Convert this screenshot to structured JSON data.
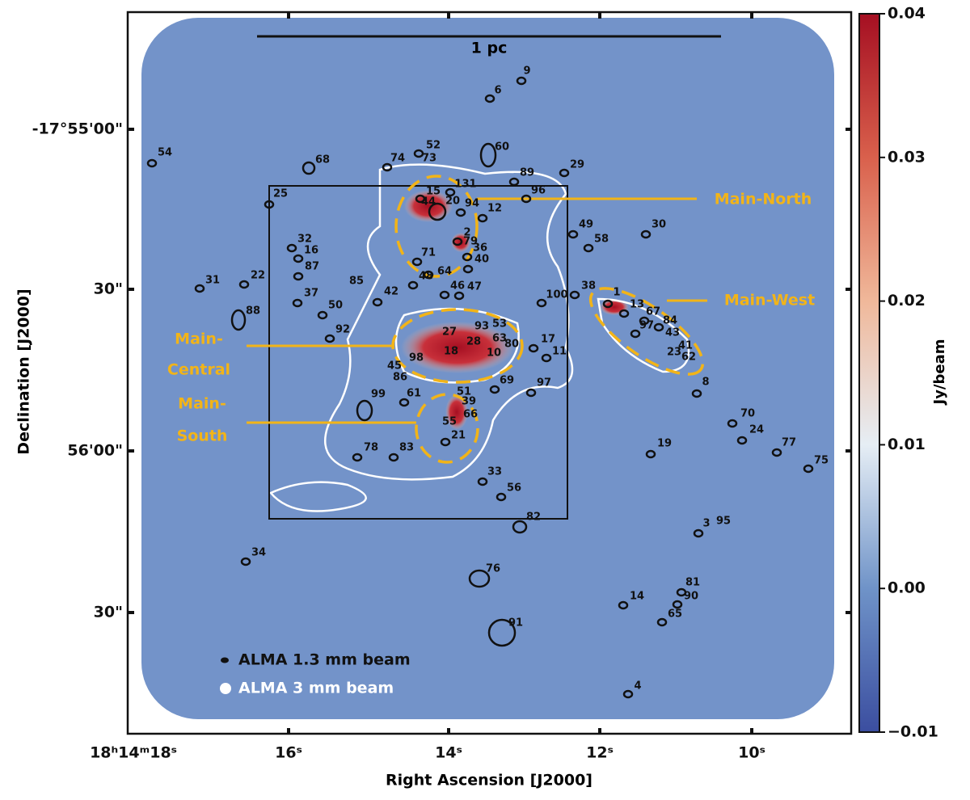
{
  "figure": {
    "x_axis": {
      "label": "Right Ascension [J2000]",
      "ticks": [
        "18ʰ14ᵐ18ˢ",
        "16ˢ",
        "14ˢ",
        "12ˢ",
        "10ˢ"
      ]
    },
    "y_axis": {
      "label": "Declination [J2000]",
      "ticks": [
        "-17°55'00\"",
        "30\"",
        "56'00\"",
        "30\""
      ]
    },
    "colorbar": {
      "label": "Jy/beam",
      "range": [
        -0.01,
        0.04
      ],
      "ticks": [
        0.04,
        0.03,
        0.02,
        0.01,
        {
          "value": 0,
          "label": "0.00"
        },
        {
          "value": -0.01,
          "label": "−0.01"
        }
      ]
    },
    "scale_bar": "1 pc",
    "regions": [
      {
        "lines": [
          "Main-North"
        ]
      },
      {
        "lines": [
          "Main-West"
        ]
      },
      {
        "lines": [
          "Main-",
          "Central"
        ]
      },
      {
        "lines": [
          "Main-",
          "South"
        ]
      }
    ],
    "legend": [
      "ALMA 1.3 mm beam",
      "ALMA 3 mm beam"
    ],
    "sources": [
      "9",
      "6",
      "60",
      "52",
      "73",
      "74",
      "68",
      "54",
      "89",
      "29",
      "131",
      "15",
      "20",
      "44",
      "94",
      "12",
      "96",
      "25",
      "49",
      "30",
      "58",
      "2",
      "79",
      "36",
      "40",
      "32",
      "16",
      "87",
      "71",
      "64",
      "22",
      "31",
      "85",
      "48",
      "46",
      "47",
      "42",
      "100",
      "38",
      "37",
      "50",
      "88",
      "1",
      "13",
      "67",
      "84",
      "97",
      "43",
      "92",
      "27",
      "93",
      "53",
      "63",
      "28",
      "18",
      "10",
      "80",
      "17",
      "11",
      "41",
      "23",
      "62",
      "98",
      "45",
      "86",
      "99",
      "61",
      "69",
      "97",
      "8",
      "51",
      "39",
      "66",
      "55",
      "21",
      "70",
      "24",
      "19",
      "77",
      "75",
      "78",
      "83",
      "33",
      "56",
      "82",
      "3",
      "95",
      "34",
      "76",
      "81",
      "14",
      "90",
      "65",
      "91",
      "4"
    ]
  }
}
